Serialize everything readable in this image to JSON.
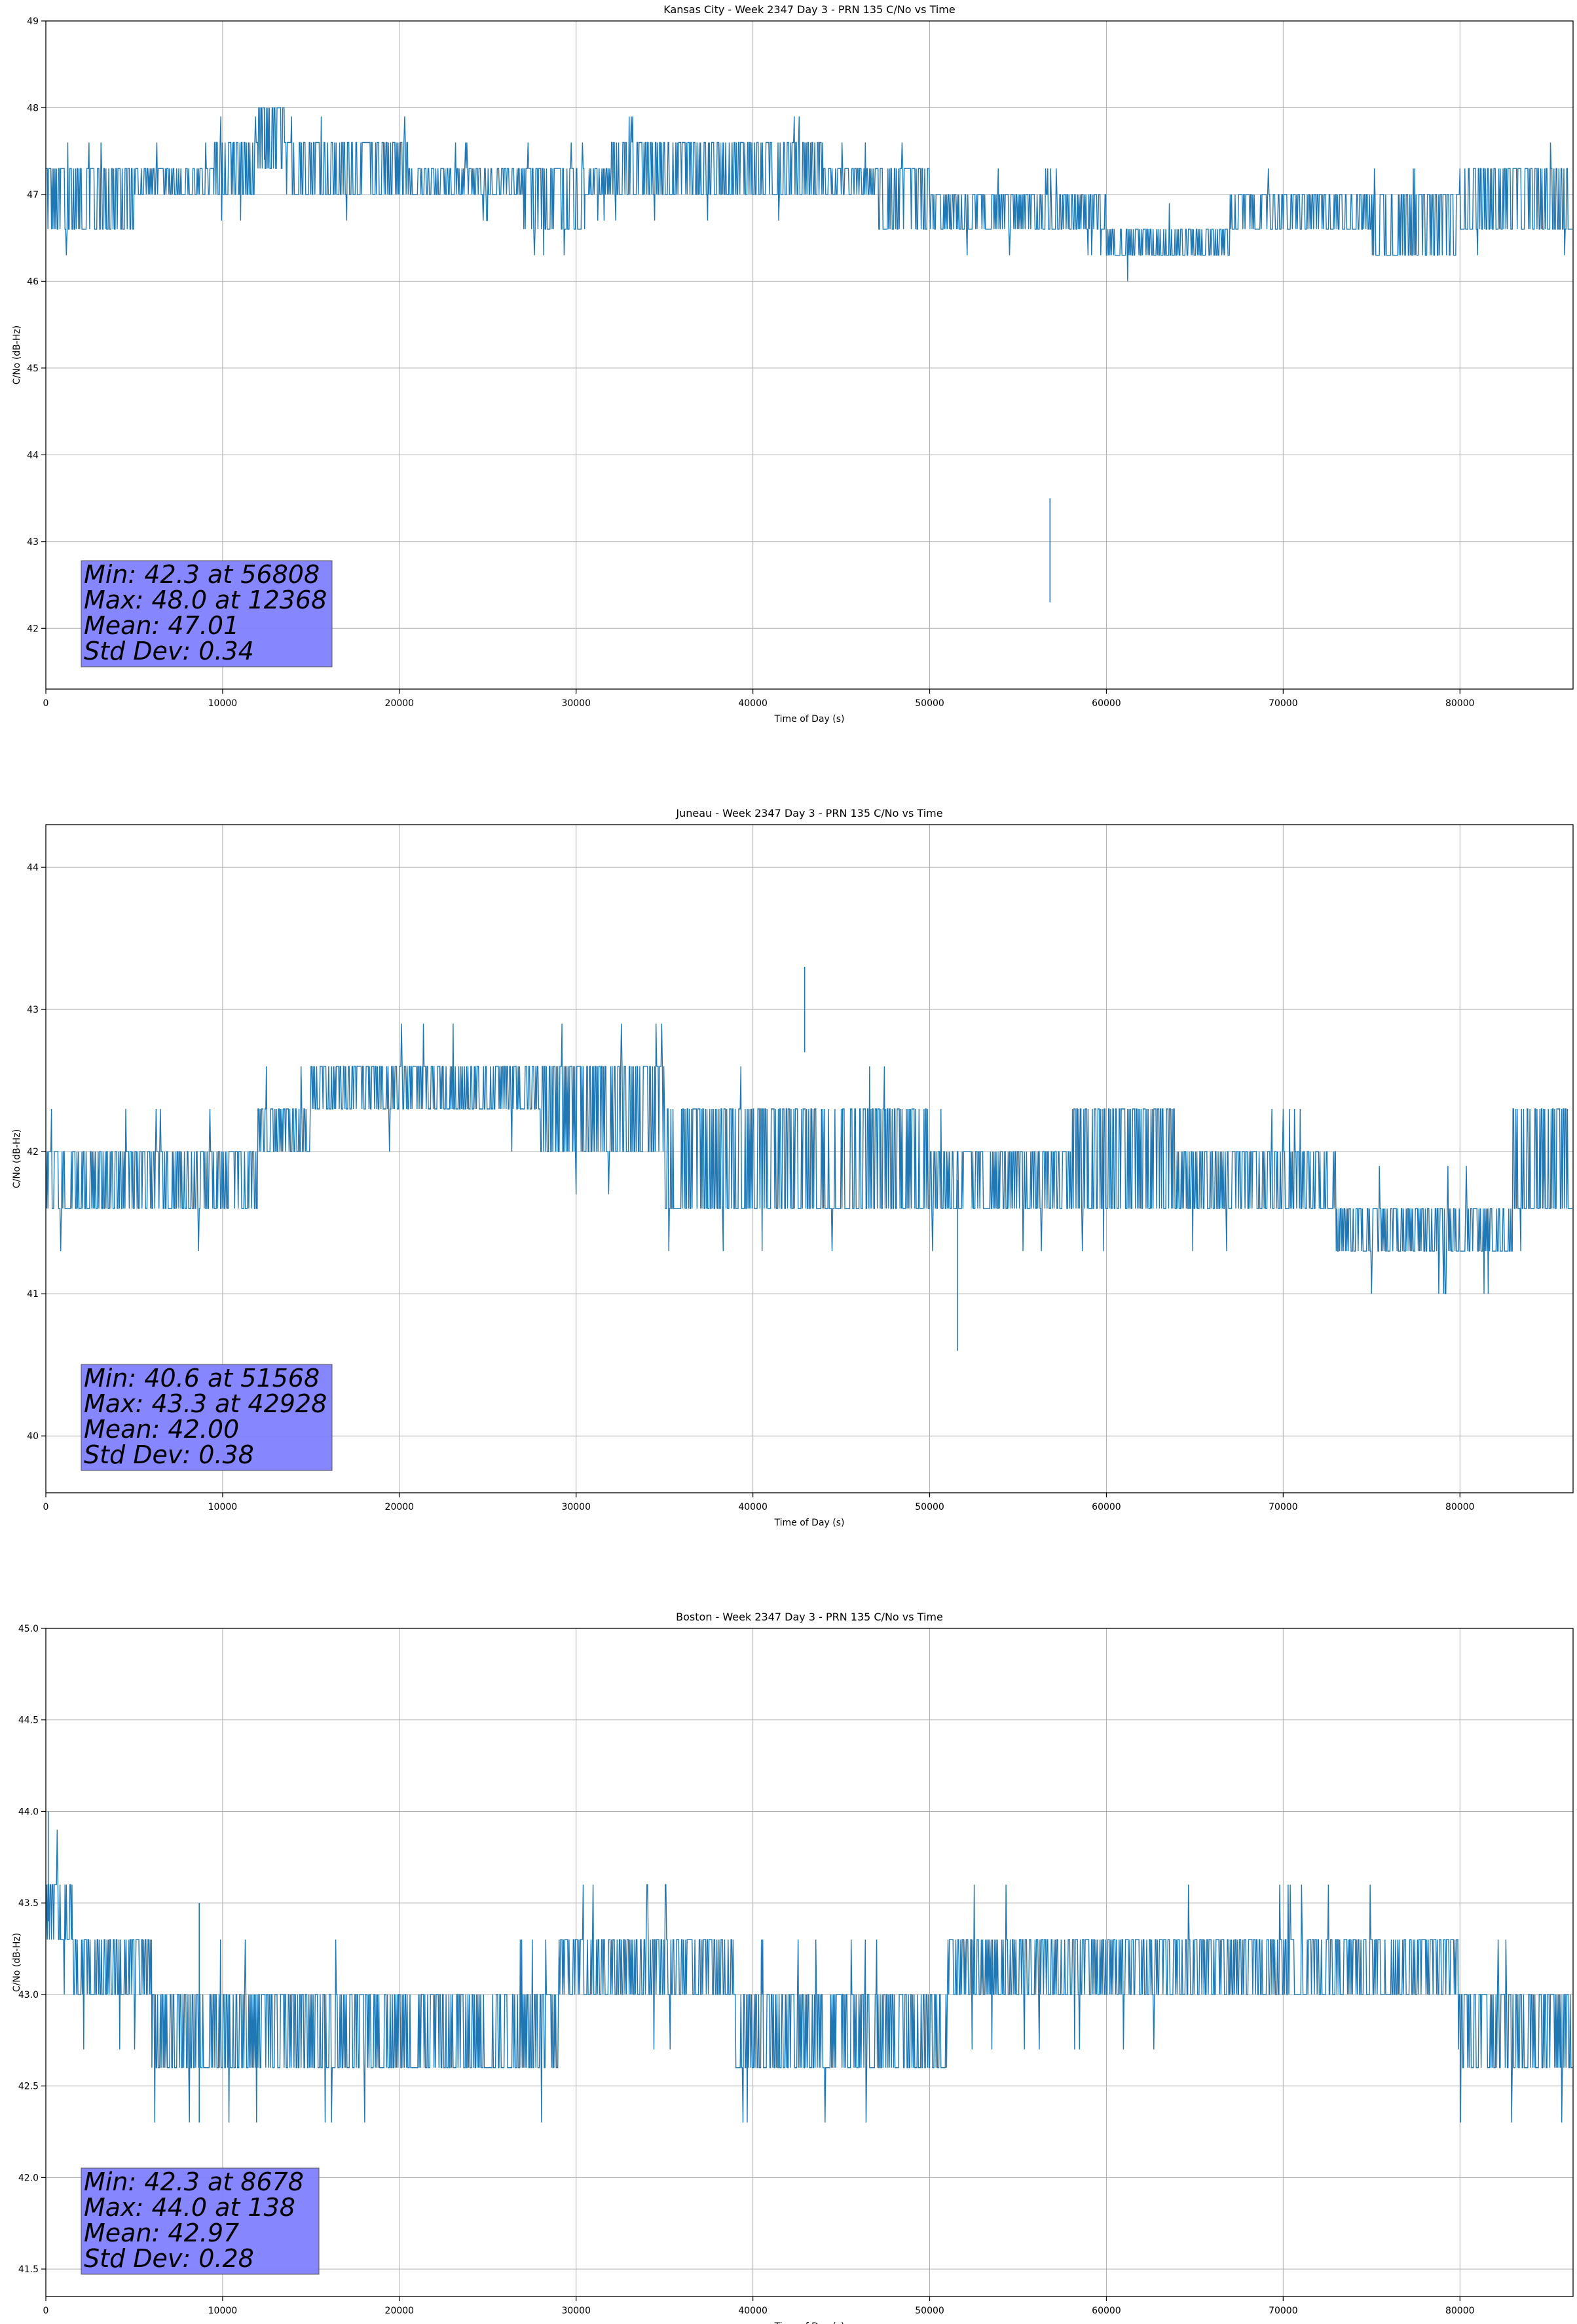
{
  "figure": {
    "line_color": "#1f77b4",
    "stats_box_color": "#8080ff",
    "grid_color": "#b0b0b0"
  },
  "chart_data": [
    {
      "type": "line",
      "title": "Kansas City - Week 2347 Day 3 - PRN 135 C/No vs Time",
      "xlabel": "Time of Day (s)",
      "ylabel": "C/No (dB-Hz)",
      "xlim": [
        0,
        86400
      ],
      "ylim": [
        41.3,
        49.0
      ],
      "xticks": [
        0,
        10000,
        20000,
        30000,
        40000,
        50000,
        60000,
        70000,
        80000
      ],
      "yticks": [
        42,
        43,
        44,
        45,
        46,
        47,
        48,
        49
      ],
      "ytick_labels": [
        "42",
        "43",
        "44",
        "45",
        "46",
        "47",
        "48",
        "49"
      ],
      "grid": true,
      "series": [
        {
          "name": "PRN 135",
          "segments": [
            {
              "x0": 0,
              "x1": 5000,
              "lo": 46.6,
              "hi": 47.3
            },
            {
              "x0": 5000,
              "x1": 9500,
              "lo": 47.0,
              "hi": 47.3
            },
            {
              "x0": 9500,
              "x1": 12000,
              "lo": 47.0,
              "hi": 47.6
            },
            {
              "x0": 12000,
              "x1": 13500,
              "lo": 47.3,
              "hi": 48.0
            },
            {
              "x0": 13500,
              "x1": 20500,
              "lo": 47.0,
              "hi": 47.6
            },
            {
              "x0": 20500,
              "x1": 27000,
              "lo": 47.0,
              "hi": 47.3
            },
            {
              "x0": 27000,
              "x1": 30500,
              "lo": 46.6,
              "hi": 47.3
            },
            {
              "x0": 30500,
              "x1": 32000,
              "lo": 47.0,
              "hi": 47.3
            },
            {
              "x0": 32000,
              "x1": 37500,
              "lo": 47.0,
              "hi": 47.6
            },
            {
              "x0": 37500,
              "x1": 44000,
              "lo": 47.0,
              "hi": 47.6
            },
            {
              "x0": 44000,
              "x1": 47000,
              "lo": 47.0,
              "hi": 47.3
            },
            {
              "x0": 47000,
              "x1": 50000,
              "lo": 46.6,
              "hi": 47.3
            },
            {
              "x0": 50000,
              "x1": 54000,
              "lo": 46.6,
              "hi": 47.0
            },
            {
              "x0": 54000,
              "x1": 60000,
              "lo": 46.6,
              "hi": 47.0
            },
            {
              "x0": 60000,
              "x1": 67000,
              "lo": 46.3,
              "hi": 46.6
            },
            {
              "x0": 67000,
              "x1": 75000,
              "lo": 46.6,
              "hi": 47.0
            },
            {
              "x0": 75000,
              "x1": 80000,
              "lo": 46.3,
              "hi": 47.0
            },
            {
              "x0": 80000,
              "x1": 86400,
              "lo": 46.6,
              "hi": 47.3
            }
          ]
        }
      ],
      "spikes": [
        {
          "x": 56808,
          "y": 42.3
        },
        {
          "x": 12368,
          "y": 48.0
        }
      ],
      "stats": [
        "Min: 42.3 at 56808",
        "Max: 48.0 at 12368",
        "Mean: 47.01",
        "Std Dev: 0.34"
      ]
    },
    {
      "type": "line",
      "title": "Juneau - Week 2347 Day 3 - PRN 135 C/No vs Time",
      "xlabel": "Time of Day (s)",
      "ylabel": "C/No (dB-Hz)",
      "xlim": [
        0,
        86400
      ],
      "ylim": [
        39.6,
        44.3
      ],
      "xticks": [
        0,
        10000,
        20000,
        30000,
        40000,
        50000,
        60000,
        70000,
        80000
      ],
      "yticks": [
        40,
        41,
        42,
        43,
        44
      ],
      "ytick_labels": [
        "40",
        "41",
        "42",
        "43",
        "44"
      ],
      "grid": true,
      "series": [
        {
          "name": "PRN 135",
          "segments": [
            {
              "x0": 0,
              "x1": 12000,
              "lo": 41.6,
              "hi": 42.0
            },
            {
              "x0": 12000,
              "x1": 15000,
              "lo": 42.0,
              "hi": 42.3
            },
            {
              "x0": 15000,
              "x1": 28000,
              "lo": 42.3,
              "hi": 42.6
            },
            {
              "x0": 28000,
              "x1": 35000,
              "lo": 42.0,
              "hi": 42.6
            },
            {
              "x0": 35000,
              "x1": 45000,
              "lo": 41.6,
              "hi": 42.3
            },
            {
              "x0": 45000,
              "x1": 50000,
              "lo": 41.6,
              "hi": 42.3
            },
            {
              "x0": 50000,
              "x1": 58000,
              "lo": 41.6,
              "hi": 42.0
            },
            {
              "x0": 58000,
              "x1": 64000,
              "lo": 41.6,
              "hi": 42.3
            },
            {
              "x0": 64000,
              "x1": 73000,
              "lo": 41.6,
              "hi": 42.0
            },
            {
              "x0": 73000,
              "x1": 83000,
              "lo": 41.3,
              "hi": 41.6
            },
            {
              "x0": 83000,
              "x1": 86400,
              "lo": 41.6,
              "hi": 42.3
            }
          ]
        }
      ],
      "spikes": [
        {
          "x": 51568,
          "y": 40.6
        },
        {
          "x": 42928,
          "y": 43.3
        }
      ],
      "stats": [
        "Min: 40.6 at 51568",
        "Max: 43.3 at 42928",
        "Mean: 42.00",
        "Std Dev: 0.38"
      ]
    },
    {
      "type": "line",
      "title": "Boston - Week 2347 Day 3 - PRN 135 C/No vs Time",
      "xlabel": "Time of Day (s)",
      "ylabel": "C/No (dB-Hz)",
      "xlim": [
        0,
        86400
      ],
      "ylim": [
        41.35,
        45.0
      ],
      "xticks": [
        0,
        10000,
        20000,
        30000,
        40000,
        50000,
        60000,
        70000,
        80000
      ],
      "yticks": [
        41.5,
        42.0,
        42.5,
        43.0,
        43.5,
        44.0,
        44.5,
        45.0
      ],
      "ytick_labels": [
        "41.5",
        "42.0",
        "42.5",
        "43.0",
        "43.5",
        "44.0",
        "44.5",
        "45.0"
      ],
      "grid": true,
      "series": [
        {
          "name": "PRN 135",
          "segments": [
            {
              "x0": 0,
              "x1": 1500,
              "lo": 43.3,
              "hi": 43.6
            },
            {
              "x0": 1500,
              "x1": 6000,
              "lo": 43.0,
              "hi": 43.3
            },
            {
              "x0": 6000,
              "x1": 29000,
              "lo": 42.6,
              "hi": 43.0
            },
            {
              "x0": 29000,
              "x1": 39000,
              "lo": 43.0,
              "hi": 43.3
            },
            {
              "x0": 39000,
              "x1": 51000,
              "lo": 42.6,
              "hi": 43.0
            },
            {
              "x0": 51000,
              "x1": 60000,
              "lo": 43.0,
              "hi": 43.3
            },
            {
              "x0": 60000,
              "x1": 80000,
              "lo": 43.0,
              "hi": 43.3
            },
            {
              "x0": 80000,
              "x1": 86400,
              "lo": 42.6,
              "hi": 43.0
            }
          ]
        }
      ],
      "spikes": [
        {
          "x": 8678,
          "y": 42.3
        },
        {
          "x": 138,
          "y": 44.0
        }
      ],
      "stats": [
        "Min: 42.3 at 8678",
        "Max: 44.0 at 138",
        "Mean: 42.97",
        "Std Dev: 0.28"
      ]
    }
  ]
}
